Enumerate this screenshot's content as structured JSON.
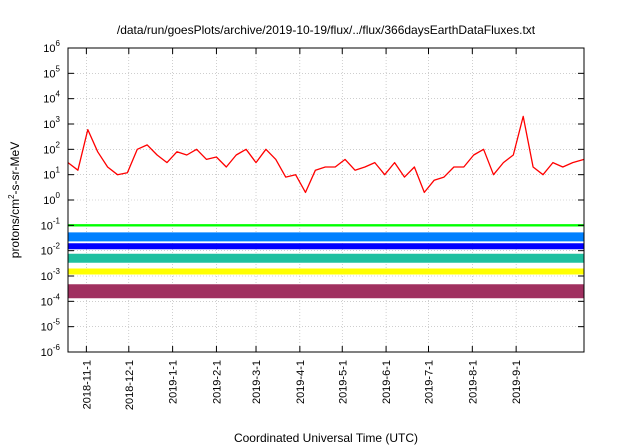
{
  "chart_data": {
    "type": "line",
    "title": "/data/run/goesPlots/archive/2019-10-19/flux/../flux/366daysEarthDataFluxes.txt",
    "xlabel": "Coordinated Universal Time (UTC)",
    "ylabel": {
      "pre": "protons/cm",
      "sup": "2",
      "post": "-s-sr-MeV"
    },
    "yscale": "log",
    "ylim": [
      1e-06,
      1000000.0
    ],
    "xlim": [
      "2018-10-19",
      "2019-10-19"
    ],
    "grid": true,
    "legend": "none",
    "y_ticks": [
      {
        "exp": "-6",
        "value": 1e-06
      },
      {
        "exp": "-5",
        "value": 1e-05
      },
      {
        "exp": "-4",
        "value": 0.0001
      },
      {
        "exp": "-3",
        "value": 0.001
      },
      {
        "exp": "-2",
        "value": 0.01
      },
      {
        "exp": "-1",
        "value": 0.1
      },
      {
        "exp": "0",
        "value": 1
      },
      {
        "exp": "1",
        "value": 10
      },
      {
        "exp": "2",
        "value": 100
      },
      {
        "exp": "3",
        "value": 1000.0
      },
      {
        "exp": "4",
        "value": 10000.0
      },
      {
        "exp": "5",
        "value": 100000.0
      },
      {
        "exp": "6",
        "value": 1000000.0
      }
    ],
    "x_ticks": [
      {
        "label": "2018-11-1",
        "date": "2018-11-01"
      },
      {
        "label": "2018-12-1",
        "date": "2018-12-01"
      },
      {
        "label": "2019-1-1",
        "date": "2019-01-01"
      },
      {
        "label": "2019-2-1",
        "date": "2019-02-01"
      },
      {
        "label": "2019-3-1",
        "date": "2019-03-01"
      },
      {
        "label": "2019-4-1",
        "date": "2019-04-01"
      },
      {
        "label": "2019-5-1",
        "date": "2019-05-01"
      },
      {
        "label": "2019-6-1",
        "date": "2019-06-01"
      },
      {
        "label": "2019-7-1",
        "date": "2019-07-01"
      },
      {
        "label": "2019-8-1",
        "date": "2019-08-01"
      },
      {
        "label": "2019-9-1",
        "date": "2019-09-01"
      }
    ],
    "x": [
      "2018-10-19",
      "2018-10-26",
      "2018-11-02",
      "2018-11-09",
      "2018-11-16",
      "2018-11-23",
      "2018-11-30",
      "2018-12-07",
      "2018-12-14",
      "2018-12-21",
      "2018-12-28",
      "2019-01-04",
      "2019-01-11",
      "2019-01-18",
      "2019-01-25",
      "2019-02-01",
      "2019-02-08",
      "2019-02-15",
      "2019-02-22",
      "2019-03-01",
      "2019-03-08",
      "2019-03-15",
      "2019-03-22",
      "2019-03-29",
      "2019-04-05",
      "2019-04-12",
      "2019-04-19",
      "2019-04-26",
      "2019-05-03",
      "2019-05-10",
      "2019-05-17",
      "2019-05-24",
      "2019-05-31",
      "2019-06-07",
      "2019-06-14",
      "2019-06-21",
      "2019-06-28",
      "2019-07-05",
      "2019-07-12",
      "2019-07-19",
      "2019-07-26",
      "2019-08-02",
      "2019-08-09",
      "2019-08-16",
      "2019-08-23",
      "2019-08-30",
      "2019-09-06",
      "2019-09-13",
      "2019-09-20",
      "2019-09-27",
      "2019-10-04",
      "2019-10-11",
      "2019-10-19"
    ],
    "series": [
      {
        "color": "#ff0000",
        "width": 1.3,
        "values": [
          30,
          15,
          600,
          80,
          20,
          10,
          12,
          100,
          150,
          60,
          30,
          80,
          60,
          100,
          40,
          50,
          20,
          60,
          100,
          30,
          100,
          40,
          8,
          10,
          2,
          15,
          20,
          20,
          40,
          15,
          20,
          30,
          10,
          30,
          8,
          20,
          2,
          6,
          8,
          20,
          20,
          60,
          100,
          10,
          30,
          60,
          2000,
          20,
          10,
          30,
          20,
          30,
          40
        ]
      },
      {
        "color": "#00ff00",
        "width": 2.4,
        "values": [
          0.1,
          0.1,
          0.1,
          0.1,
          0.1,
          0.1,
          0.1,
          0.1,
          0.1,
          0.1,
          0.1,
          0.1,
          0.1,
          0.1,
          0.1,
          0.1,
          0.1,
          0.1,
          0.1,
          0.1,
          0.1,
          0.1,
          0.1,
          0.1,
          0.1,
          0.1,
          0.1,
          0.1,
          0.1,
          0.1,
          0.1,
          0.1,
          0.1,
          0.1,
          0.1,
          0.1,
          0.1,
          0.1,
          0.1,
          0.1,
          0.1,
          0.1,
          0.1,
          0.1,
          0.1,
          0.1,
          0.1,
          0.1,
          0.1,
          0.1,
          0.1,
          0.1,
          0.1
        ]
      },
      {
        "color": "#0080ff",
        "width": 9,
        "values": [
          0.035,
          0.035,
          0.035,
          0.035,
          0.035,
          0.035,
          0.035,
          0.035,
          0.035,
          0.035,
          0.035,
          0.035,
          0.035,
          0.035,
          0.035,
          0.035,
          0.035,
          0.035,
          0.035,
          0.035,
          0.035,
          0.035,
          0.035,
          0.035,
          0.035,
          0.035,
          0.035,
          0.035,
          0.035,
          0.035,
          0.035,
          0.035,
          0.035,
          0.035,
          0.035,
          0.035,
          0.035,
          0.035,
          0.035,
          0.035,
          0.035,
          0.035,
          0.035,
          0.035,
          0.035,
          0.035,
          0.035,
          0.035,
          0.035,
          0.035,
          0.035,
          0.035,
          0.035
        ]
      },
      {
        "color": "#0000ff",
        "width": 6,
        "values": [
          0.015,
          0.015,
          0.015,
          0.015,
          0.015,
          0.015,
          0.015,
          0.015,
          0.015,
          0.015,
          0.015,
          0.015,
          0.015,
          0.015,
          0.015,
          0.015,
          0.015,
          0.015,
          0.015,
          0.015,
          0.015,
          0.015,
          0.015,
          0.015,
          0.015,
          0.015,
          0.015,
          0.015,
          0.015,
          0.015,
          0.015,
          0.015,
          0.015,
          0.015,
          0.015,
          0.015,
          0.015,
          0.015,
          0.015,
          0.015,
          0.015,
          0.015,
          0.015,
          0.015,
          0.015,
          0.015,
          0.015,
          0.015,
          0.015,
          0.015,
          0.015,
          0.015,
          0.015
        ]
      },
      {
        "color": "#20c0a0",
        "width": 9,
        "values": [
          0.005,
          0.005,
          0.005,
          0.005,
          0.005,
          0.005,
          0.005,
          0.005,
          0.005,
          0.005,
          0.005,
          0.005,
          0.005,
          0.005,
          0.005,
          0.005,
          0.005,
          0.005,
          0.005,
          0.005,
          0.005,
          0.005,
          0.005,
          0.005,
          0.005,
          0.005,
          0.005,
          0.005,
          0.005,
          0.005,
          0.005,
          0.005,
          0.005,
          0.005,
          0.005,
          0.005,
          0.005,
          0.005,
          0.005,
          0.005,
          0.005,
          0.005,
          0.005,
          0.005,
          0.005,
          0.005,
          0.005,
          0.005,
          0.005,
          0.005,
          0.005,
          0.005,
          0.005
        ]
      },
      {
        "color": "#ffff00",
        "width": 6,
        "values": [
          0.0015,
          0.0015,
          0.0015,
          0.0015,
          0.0015,
          0.0015,
          0.0015,
          0.0015,
          0.0015,
          0.0015,
          0.0015,
          0.0015,
          0.0015,
          0.0015,
          0.0015,
          0.0015,
          0.0015,
          0.0015,
          0.0015,
          0.0015,
          0.0015,
          0.0015,
          0.0015,
          0.0015,
          0.0015,
          0.0015,
          0.0015,
          0.0015,
          0.0015,
          0.0015,
          0.0015,
          0.0015,
          0.0015,
          0.0015,
          0.0015,
          0.0015,
          0.0015,
          0.0015,
          0.0015,
          0.0015,
          0.0015,
          0.0015,
          0.0015,
          0.0015,
          0.0015,
          0.0015,
          0.0015,
          0.0015,
          0.0015,
          0.0015,
          0.0015,
          0.0015,
          0.0015
        ]
      },
      {
        "color": "#a03060",
        "width": 14,
        "values": [
          0.00025,
          0.00025,
          0.00025,
          0.00025,
          0.00025,
          0.00025,
          0.00025,
          0.00025,
          0.00025,
          0.00025,
          0.00025,
          0.00025,
          0.00025,
          0.00025,
          0.00025,
          0.00025,
          0.00025,
          0.00025,
          0.00025,
          0.00025,
          0.00025,
          0.00025,
          0.00025,
          0.00025,
          0.00025,
          0.00025,
          0.00025,
          0.00025,
          0.00025,
          0.00025,
          0.00025,
          0.00025,
          0.00025,
          0.00025,
          0.00025,
          0.00025,
          0.00025,
          0.00025,
          0.00025,
          0.00025,
          0.00025,
          0.00025,
          0.00025,
          0.00025,
          0.00025,
          0.00025,
          0.00025,
          0.00025,
          0.00025,
          0.00025,
          0.00025,
          0.00025,
          0.00025
        ]
      }
    ]
  }
}
